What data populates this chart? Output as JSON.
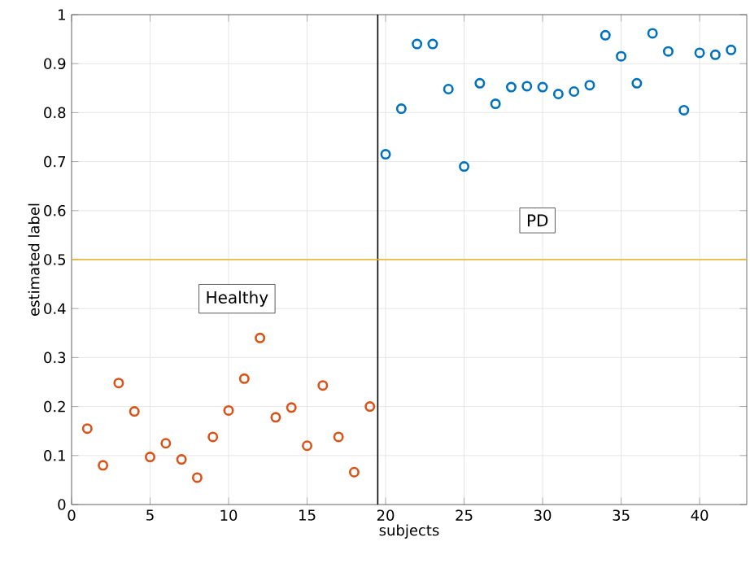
{
  "chart_data": {
    "type": "scatter",
    "xlabel": "subjects",
    "ylabel": "estimated label",
    "xlim": [
      0,
      43
    ],
    "ylim": [
      0,
      1
    ],
    "xticks": [
      0,
      5,
      10,
      15,
      20,
      25,
      30,
      35,
      40
    ],
    "yticks": [
      0,
      0.1,
      0.2,
      0.3,
      0.4,
      0.5,
      0.6,
      0.7,
      0.8,
      0.9,
      1
    ],
    "grid": true,
    "marker": "circle",
    "series": [
      {
        "color": "#d95319",
        "x": [
          1,
          2,
          3,
          4,
          5,
          6,
          7,
          8,
          9,
          10,
          11,
          12,
          13,
          14,
          15,
          16,
          17,
          18,
          19
        ],
        "values": [
          0.155,
          0.08,
          0.248,
          0.19,
          0.097,
          0.125,
          0.092,
          0.055,
          0.138,
          0.192,
          0.257,
          0.34,
          0.178,
          0.198,
          0.12,
          0.243,
          0.138,
          0.066,
          0.2
        ]
      },
      {
        "color": "#0072bd",
        "x": [
          20,
          21,
          22,
          23,
          24,
          25,
          26,
          27,
          28,
          29,
          30,
          31,
          32,
          33,
          34,
          35,
          36,
          37,
          38,
          39,
          40,
          41,
          42
        ],
        "values": [
          0.715,
          0.808,
          0.94,
          0.94,
          0.848,
          0.69,
          0.86,
          0.818,
          0.852,
          0.854,
          0.852,
          0.838,
          0.843,
          0.856,
          0.958,
          0.915,
          0.86,
          0.962,
          0.925,
          0.805,
          0.922,
          0.918,
          0.928
        ]
      }
    ],
    "ref_lines": [
      {
        "axis": "x",
        "value": 19.5,
        "color": "#000000"
      },
      {
        "axis": "y",
        "value": 0.5,
        "color": "#edb120"
      }
    ],
    "annotations": [
      "Healthy",
      "PD"
    ]
  }
}
